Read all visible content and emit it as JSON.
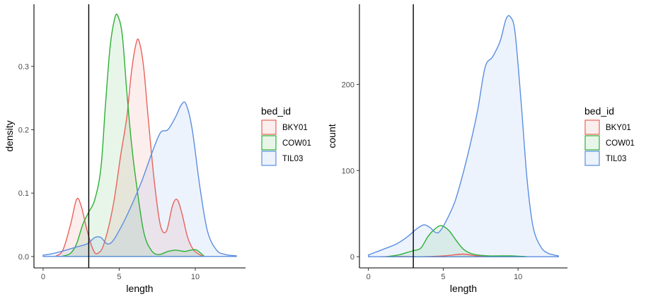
{
  "colors": {
    "BKY01": "#e8625a",
    "COW01": "#2db034",
    "TIL03": "#5b8ee0"
  },
  "legend_title": "bed_id",
  "chart_data": [
    {
      "type": "area",
      "xlabel": "length",
      "ylabel": "density",
      "xlim": [
        -0.6,
        13.3
      ],
      "ylim": [
        -0.018,
        0.398
      ],
      "x_ticks": [
        0,
        5,
        10
      ],
      "y_ticks": [
        0.0,
        0.1,
        0.2,
        0.3
      ],
      "y_tick_labels": [
        "0.0",
        "0.1",
        "0.2",
        "0.3"
      ],
      "vline": 3,
      "series": [
        {
          "name": "BKY01",
          "points": [
            [
              0.8,
              0
            ],
            [
              1.3,
              0.01
            ],
            [
              1.8,
              0.05
            ],
            [
              2.2,
              0.09
            ],
            [
              2.5,
              0.08
            ],
            [
              2.9,
              0.04
            ],
            [
              3.3,
              0.01
            ],
            [
              3.6,
              0.005
            ],
            [
              4.0,
              0.02
            ],
            [
              4.6,
              0.08
            ],
            [
              5.1,
              0.16
            ],
            [
              5.5,
              0.22
            ],
            [
              5.8,
              0.29
            ],
            [
              6.1,
              0.335
            ],
            [
              6.3,
              0.34
            ],
            [
              6.6,
              0.3
            ],
            [
              6.9,
              0.22
            ],
            [
              7.3,
              0.12
            ],
            [
              7.7,
              0.05
            ],
            [
              8.1,
              0.04
            ],
            [
              8.5,
              0.08
            ],
            [
              8.8,
              0.09
            ],
            [
              9.1,
              0.07
            ],
            [
              9.5,
              0.03
            ],
            [
              9.9,
              0.01
            ],
            [
              10.5,
              0
            ]
          ]
        },
        {
          "name": "COW01",
          "points": [
            [
              1.2,
              0
            ],
            [
              1.8,
              0.005
            ],
            [
              2.2,
              0.02
            ],
            [
              2.6,
              0.05
            ],
            [
              3.0,
              0.07
            ],
            [
              3.4,
              0.09
            ],
            [
              3.8,
              0.14
            ],
            [
              4.1,
              0.24
            ],
            [
              4.4,
              0.33
            ],
            [
              4.7,
              0.375
            ],
            [
              4.9,
              0.38
            ],
            [
              5.2,
              0.35
            ],
            [
              5.5,
              0.26
            ],
            [
              5.8,
              0.18
            ],
            [
              6.1,
              0.12
            ],
            [
              6.6,
              0.04
            ],
            [
              7.1,
              0.01
            ],
            [
              7.6,
              0.003
            ],
            [
              8.2,
              0.008
            ],
            [
              8.7,
              0.01
            ],
            [
              9.3,
              0.008
            ],
            [
              9.7,
              0.01
            ],
            [
              10.1,
              0.01
            ],
            [
              10.6,
              0
            ]
          ]
        },
        {
          "name": "TIL03",
          "points": [
            [
              0,
              0.002
            ],
            [
              0.7,
              0.005
            ],
            [
              1.5,
              0.01
            ],
            [
              2.2,
              0.015
            ],
            [
              2.9,
              0.02
            ],
            [
              3.4,
              0.03
            ],
            [
              3.8,
              0.03
            ],
            [
              4.2,
              0.02
            ],
            [
              4.6,
              0.025
            ],
            [
              5.2,
              0.05
            ],
            [
              5.8,
              0.08
            ],
            [
              6.5,
              0.12
            ],
            [
              7.1,
              0.16
            ],
            [
              7.7,
              0.195
            ],
            [
              8.2,
              0.2
            ],
            [
              8.7,
              0.22
            ],
            [
              9.1,
              0.24
            ],
            [
              9.4,
              0.24
            ],
            [
              9.8,
              0.2
            ],
            [
              10.3,
              0.11
            ],
            [
              10.8,
              0.04
            ],
            [
              11.4,
              0.01
            ],
            [
              12.0,
              0.003
            ],
            [
              12.7,
              0.001
            ]
          ]
        }
      ]
    },
    {
      "type": "area",
      "xlabel": "length",
      "ylabel": "count",
      "xlim": [
        -0.6,
        13.3
      ],
      "ylim": [
        -13,
        293
      ],
      "x_ticks": [
        0,
        5,
        10
      ],
      "y_ticks": [
        0,
        100,
        200
      ],
      "y_tick_labels": [
        "0",
        "100",
        "200"
      ],
      "vline": 3,
      "series": [
        {
          "name": "BKY01",
          "points": [
            [
              0.8,
              0
            ],
            [
              2.2,
              0.3
            ],
            [
              3.6,
              0
            ],
            [
              5.1,
              1
            ],
            [
              6.3,
              3
            ],
            [
              7.3,
              1
            ],
            [
              8.8,
              0.5
            ],
            [
              10.5,
              0
            ]
          ]
        },
        {
          "name": "COW01",
          "points": [
            [
              1.2,
              0
            ],
            [
              2.0,
              2
            ],
            [
              2.6,
              5
            ],
            [
              3.0,
              7
            ],
            [
              3.5,
              10
            ],
            [
              4.0,
              24
            ],
            [
              4.5,
              33
            ],
            [
              4.9,
              36
            ],
            [
              5.4,
              30
            ],
            [
              5.9,
              18
            ],
            [
              6.4,
              8
            ],
            [
              7.0,
              3
            ],
            [
              8.0,
              1
            ],
            [
              9.5,
              1
            ],
            [
              10.6,
              0
            ]
          ]
        },
        {
          "name": "TIL03",
          "points": [
            [
              0,
              2
            ],
            [
              0.6,
              6
            ],
            [
              1.2,
              10
            ],
            [
              1.9,
              15
            ],
            [
              2.6,
              23
            ],
            [
              3.2,
              32
            ],
            [
              3.7,
              37
            ],
            [
              4.1,
              34
            ],
            [
              4.5,
              28
            ],
            [
              4.8,
              30
            ],
            [
              5.3,
              45
            ],
            [
              5.8,
              65
            ],
            [
              6.3,
              95
            ],
            [
              6.8,
              130
            ],
            [
              7.3,
              170
            ],
            [
              7.8,
              220
            ],
            [
              8.3,
              232
            ],
            [
              8.8,
              250
            ],
            [
              9.2,
              276
            ],
            [
              9.5,
              278
            ],
            [
              9.8,
              260
            ],
            [
              10.2,
              180
            ],
            [
              10.6,
              90
            ],
            [
              11.0,
              35
            ],
            [
              11.5,
              12
            ],
            [
              12.0,
              4
            ],
            [
              12.7,
              1
            ]
          ]
        }
      ]
    }
  ]
}
